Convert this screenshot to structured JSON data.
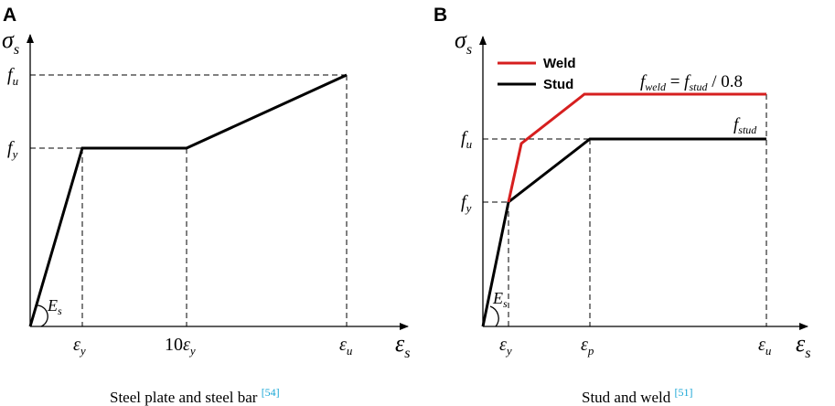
{
  "panel_a": {
    "letter": "A",
    "y_axis_symbol": "σ",
    "y_axis_sub": "s",
    "x_axis_symbol": "ε",
    "x_axis_sub": "s",
    "fu_label": "f",
    "fu_sub": "u",
    "fy_label": "f",
    "fy_sub": "y",
    "es_label": "E",
    "es_sub": "s",
    "tick_ey": "ε",
    "tick_ey_sub": "y",
    "tick_10ey_prefix": "10",
    "tick_10ey": "ε",
    "tick_10ey_sub": "y",
    "tick_eu": "ε",
    "tick_eu_sub": "u",
    "caption": "Steel plate and steel bar",
    "ref": "[54]"
  },
  "panel_b": {
    "letter": "B",
    "y_axis_symbol": "σ",
    "y_axis_sub": "s",
    "x_axis_symbol": "ε",
    "x_axis_sub": "s",
    "fu_label": "f",
    "fu_sub": "u",
    "fy_label": "f",
    "fy_sub": "y",
    "es_label": "E",
    "es_sub": "s",
    "legend_weld": "Weld",
    "legend_stud": "Stud",
    "weld_eq_f1": "f",
    "weld_eq_sub1": "weld",
    "weld_eq_eq": " = ",
    "weld_eq_f2": "f",
    "weld_eq_sub2": "stud",
    "weld_eq_tail": " / 0.8",
    "fstud_label": "f",
    "fstud_sub": "stud",
    "tick_ey": "ε",
    "tick_ey_sub": "y",
    "tick_ep": "ε",
    "tick_ep_sub": "p",
    "tick_eu": "ε",
    "tick_eu_sub": "u",
    "caption": "Stud and weld",
    "ref": "[51]"
  },
  "colors": {
    "weld": "#d61f1f",
    "stud": "#000000",
    "ref": "#1aa7d6"
  }
}
